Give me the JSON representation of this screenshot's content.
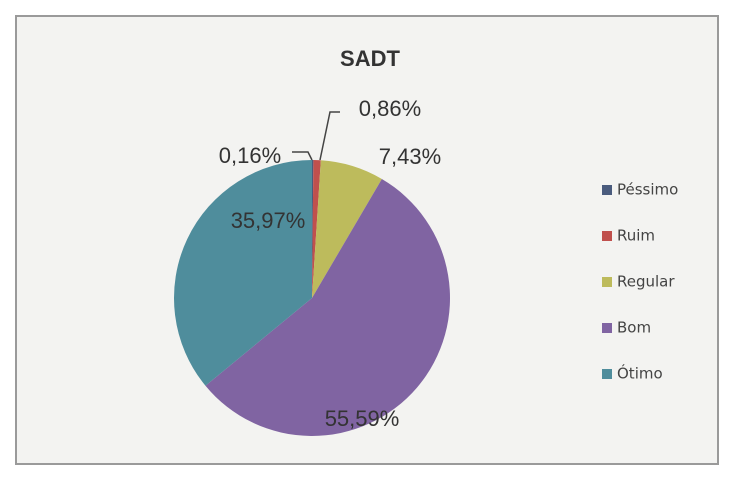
{
  "chart_data": {
    "type": "pie",
    "title": "SADT",
    "categories": [
      "Péssimo",
      "Ruim",
      "Regular",
      "Bom",
      "Ótimo"
    ],
    "values": [
      0.16,
      0.86,
      7.43,
      55.59,
      35.97
    ],
    "value_labels": [
      "0,16%",
      "0,86%",
      "7,43%",
      "55,59%",
      "35,97%"
    ],
    "colors": [
      "#4a5b7d",
      "#c0504d",
      "#bdbb5c",
      "#8064a2",
      "#4f8d9c"
    ],
    "legend": "right"
  }
}
